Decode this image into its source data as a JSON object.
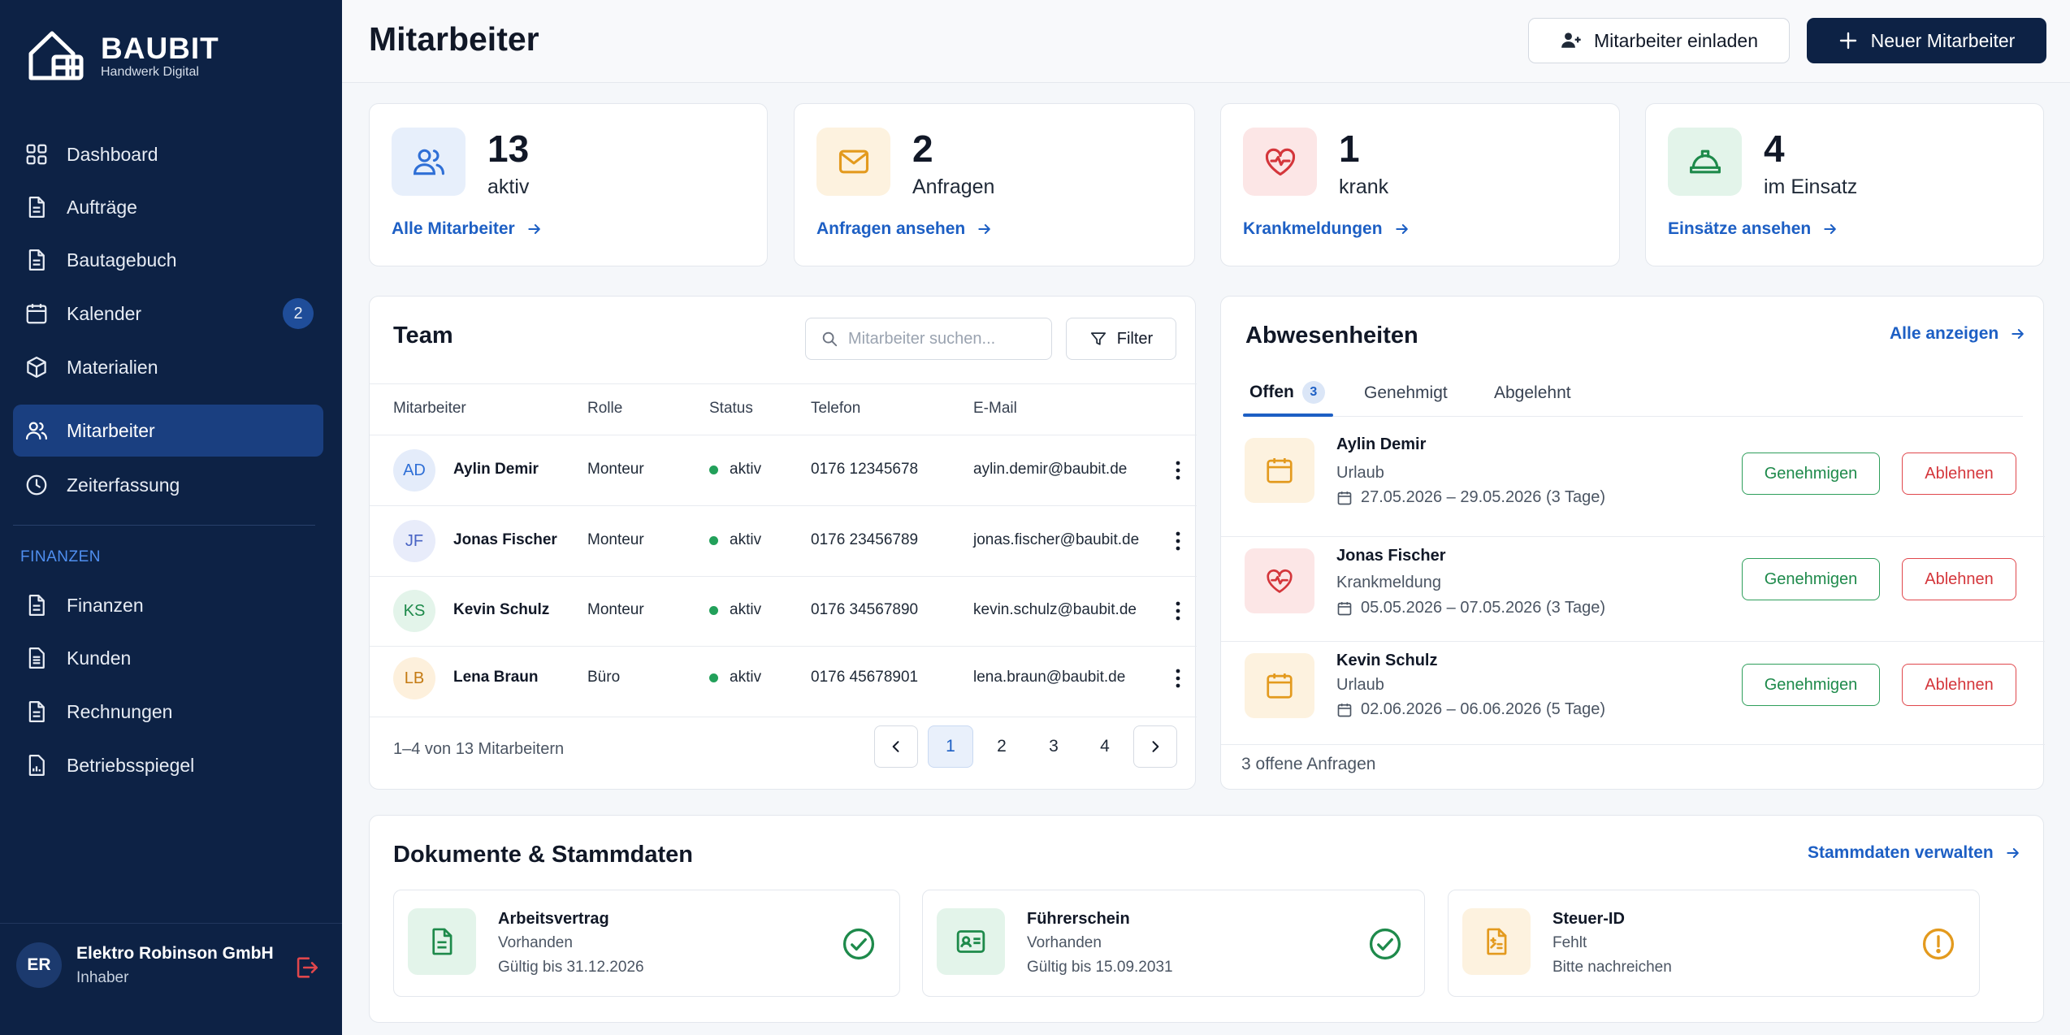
{
  "brand": {
    "name": "BAUBIT",
    "tagline": "Handwerk Digital"
  },
  "nav": {
    "items": [
      {
        "label": "Dashboard",
        "icon": "dashboard-icon"
      },
      {
        "label": "Aufträge",
        "icon": "document-icon"
      },
      {
        "label": "Bautagebuch",
        "icon": "document-icon"
      },
      {
        "label": "Kalender",
        "icon": "calendar-icon",
        "badge": "2"
      },
      {
        "label": "Materialien",
        "icon": "box-icon"
      },
      {
        "label": "Mitarbeiter",
        "icon": "users-icon",
        "active": true
      },
      {
        "label": "Zeiterfassung",
        "icon": "clock-icon"
      }
    ],
    "section_label": "FINANZEN",
    "finance_items": [
      {
        "label": "Finanzen",
        "icon": "document-icon"
      },
      {
        "label": "Kunden",
        "icon": "list-icon"
      },
      {
        "label": "Rechnungen",
        "icon": "document-icon"
      },
      {
        "label": "Betriebsspiegel",
        "icon": "chart-icon"
      }
    ]
  },
  "user": {
    "initials": "ER",
    "name": "Elektro Robinson GmbH",
    "role": "Inhaber"
  },
  "header": {
    "title": "Mitarbeiter",
    "invite_label": "Mitarbeiter einladen",
    "new_label": "Neuer Mitarbeiter"
  },
  "stats": [
    {
      "value": "13",
      "label": "aktiv",
      "link": "Alle Mitarbeiter",
      "icon": "users-icon",
      "color": "#2f6fd6"
    },
    {
      "value": "2",
      "label": "Anfragen",
      "link": "Anfragen ansehen",
      "icon": "mail-icon",
      "color": "#e39a1e"
    },
    {
      "value": "1",
      "label": "krank",
      "link": "Krankmeldungen",
      "icon": "heart-pulse-icon",
      "color": "#d4363b"
    },
    {
      "value": "4",
      "label": "im Einsatz",
      "link": "Einsätze ansehen",
      "icon": "hardhat-icon",
      "color": "#1e8a4b"
    }
  ],
  "team": {
    "title": "Team",
    "search_placeholder": "Mitarbeiter suchen...",
    "filter_label": "Filter",
    "columns": [
      "Mitarbeiter",
      "Rolle",
      "Status",
      "Telefon",
      "E-Mail"
    ],
    "rows": [
      {
        "initials": "AD",
        "name": "Aylin Demir",
        "role": "Monteur",
        "status": "aktiv",
        "phone": "0176 12345678",
        "email": "aylin.demir@baubit.de",
        "avatar_bg": "#e4ecfa",
        "avatar_fg": "#2f6fd6"
      },
      {
        "initials": "JF",
        "name": "Jonas Fischer",
        "role": "Monteur",
        "status": "aktiv",
        "phone": "0176 23456789",
        "email": "jonas.fischer@baubit.de",
        "avatar_bg": "#e8ecfa",
        "avatar_fg": "#4863c4"
      },
      {
        "initials": "KS",
        "name": "Kevin Schulz",
        "role": "Monteur",
        "status": "aktiv",
        "phone": "0176 34567890",
        "email": "kevin.schulz@baubit.de",
        "avatar_bg": "#e3f4ea",
        "avatar_fg": "#1e8a4b"
      },
      {
        "initials": "LB",
        "name": "Lena Braun",
        "role": "Büro",
        "status": "aktiv",
        "phone": "0176 45678901",
        "email": "lena.braun@baubit.de",
        "avatar_bg": "#fdf0dc",
        "avatar_fg": "#c47a12"
      }
    ],
    "pagination_info": "1–4 von 13 Mitarbeitern",
    "pages": [
      "1",
      "2",
      "3",
      "4"
    ],
    "current_page": "1"
  },
  "absences": {
    "title": "Abwesenheiten",
    "show_all": "Alle anzeigen",
    "tabs": [
      {
        "label": "Offen",
        "count": "3"
      },
      {
        "label": "Genehmigt"
      },
      {
        "label": "Abgelehnt"
      }
    ],
    "items": [
      {
        "name": "Aylin Demir",
        "type": "Urlaub",
        "dates": "27.05.2026 – 29.05.2026 (3 Tage)",
        "icon": "calendar-icon",
        "color": "#e39a1e",
        "bg": "#fdf2df"
      },
      {
        "name": "Jonas Fischer",
        "type": "Krankmeldung",
        "dates": "05.05.2026 – 07.05.2026 (3 Tage)",
        "icon": "heart-pulse-icon",
        "color": "#d4363b",
        "bg": "#fce6e6"
      },
      {
        "name": "Kevin Schulz",
        "type": "Urlaub",
        "dates": "02.06.2026 – 06.06.2026 (5 Tage)",
        "icon": "calendar-icon",
        "color": "#e39a1e",
        "bg": "#fdf2df"
      }
    ],
    "approve_label": "Genehmigen",
    "reject_label": "Ablehnen",
    "footer": "3 offene Anfragen"
  },
  "documents": {
    "title": "Dokumente & Stammdaten",
    "manage_link": "Stammdaten verwalten",
    "items": [
      {
        "title": "Arbeitsvertrag",
        "status": "Vorhanden",
        "detail": "Gültig bis 31.12.2026",
        "icon": "document-icon",
        "state": "ok"
      },
      {
        "title": "Führerschein",
        "status": "Vorhanden",
        "detail": "Gültig bis 15.09.2031",
        "icon": "id-card-icon",
        "state": "ok"
      },
      {
        "title": "Steuer-ID",
        "status": "Fehlt",
        "detail": "Bitte nachreichen",
        "icon": "tax-document-icon",
        "state": "missing"
      }
    ]
  }
}
